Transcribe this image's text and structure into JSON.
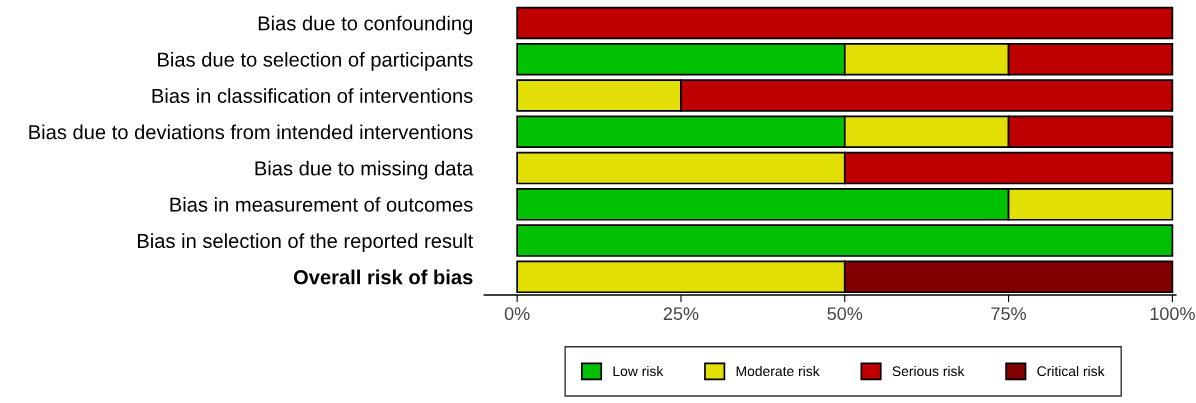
{
  "chart_data": {
    "type": "bar",
    "orientation": "horizontal",
    "stacked": true,
    "categories": [
      "Bias due to confounding",
      "Bias due to selection of participants",
      "Bias in classification of interventions",
      "Bias due to deviations from intended interventions",
      "Bias due to missing data",
      "Bias in measurement of outcomes",
      "Bias in selection of the reported result",
      "Overall risk of bias"
    ],
    "series": [
      {
        "name": "Low risk",
        "color": "#02c102",
        "values": [
          0,
          50,
          0,
          50,
          0,
          75,
          100,
          0
        ]
      },
      {
        "name": "Moderate risk",
        "color": "#e2df07",
        "values": [
          0,
          25,
          25,
          25,
          50,
          25,
          0,
          50
        ]
      },
      {
        "name": "Serious risk",
        "color": "#bf0000",
        "values": [
          100,
          25,
          75,
          25,
          50,
          0,
          0,
          0
        ]
      },
      {
        "name": "Critical risk",
        "color": "#820000",
        "values": [
          0,
          0,
          0,
          0,
          0,
          0,
          0,
          50
        ]
      }
    ],
    "xlim": [
      -5,
      100.5
    ],
    "xticks": [
      {
        "value": 0,
        "label": "0%"
      },
      {
        "value": 25,
        "label": "25%"
      },
      {
        "value": 50,
        "label": "50%"
      },
      {
        "value": 75,
        "label": "75%"
      },
      {
        "value": 100,
        "label": "100%"
      }
    ],
    "grid": false,
    "legend": "bottom"
  }
}
